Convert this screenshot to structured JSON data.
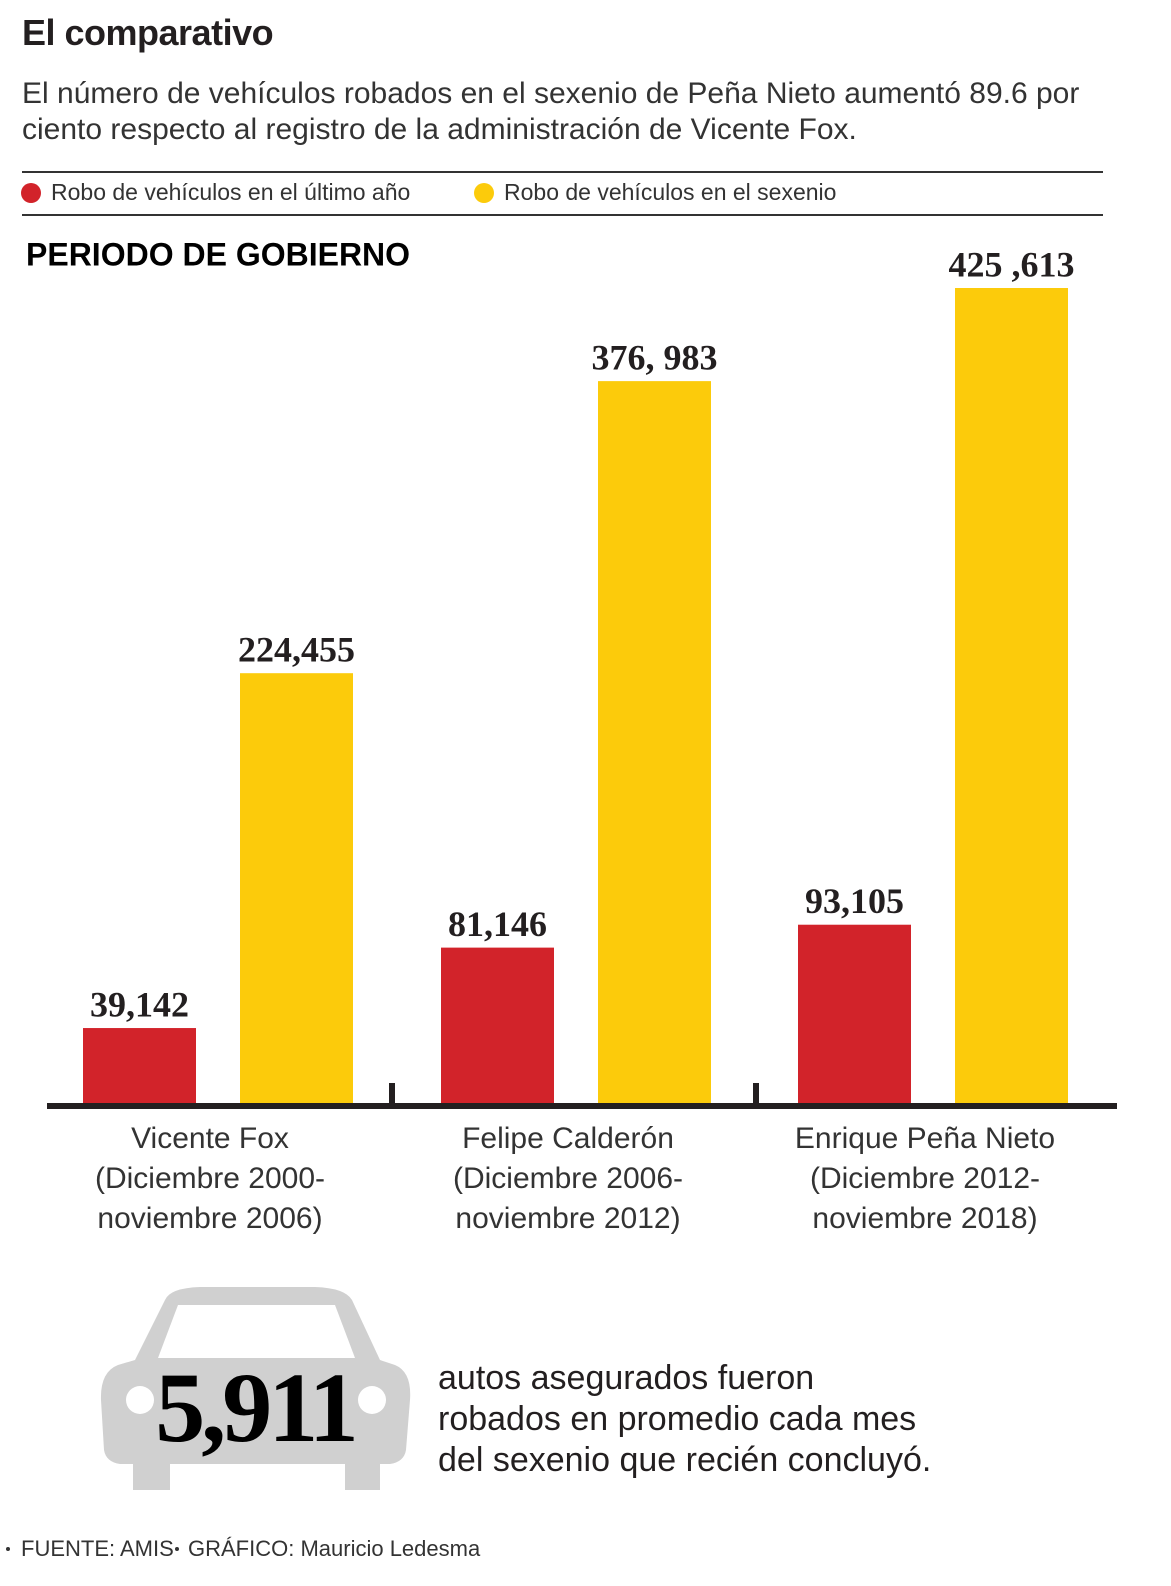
{
  "chart_data": {
    "type": "bar",
    "title": "El comparativo",
    "subtitle": "El número de vehículos robados en el sexenio de Peña Nieto aumentó 89.6 por ciento respecto al registro de la administración de Vicente Fox.",
    "xlabel": "PERIODO DE GOBIERNO",
    "categories": [
      "Vicente Fox\n(Diciembre 2000-\nnoviembre 2006)",
      "Felipe Calderón\n(Diciembre 2006-\nnoviembre 2012)",
      "Enrique Peña Nieto\n(Diciembre 2012-\nnoviembre 2018)"
    ],
    "series": [
      {
        "name": "Robo de vehículos en el último año",
        "color": "#d2232a",
        "values": [
          39142,
          81146,
          93105
        ],
        "value_labels": [
          "39,142",
          "81,146",
          "93,105"
        ]
      },
      {
        "name": "Robo de vehículos en el sexenio",
        "color": "#fccb0b",
        "values": [
          224455,
          376983,
          425613
        ],
        "value_labels": [
          "224,455",
          "376, 983",
          "425 ,613"
        ]
      }
    ],
    "callout": {
      "value": "5,911",
      "text": [
        "autos asegurados fueron",
        "robados en promedio cada mes",
        "del sexenio que recién concluyó."
      ]
    },
    "source": [
      "FUENTE: AMIS",
      "GRÁFICO: Mauricio Ledesma"
    ]
  }
}
